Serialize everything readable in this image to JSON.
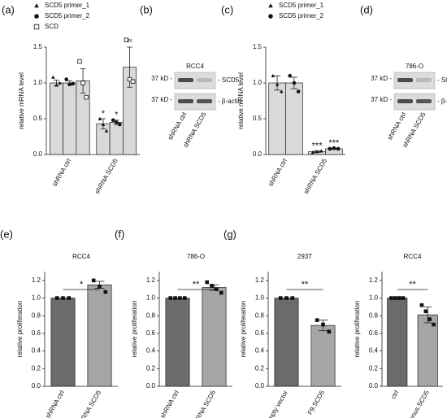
{
  "chart_data": [
    {
      "type": "bar",
      "panel": "(a)",
      "ylabel": "relative mRNA level",
      "categories": [
        "shRNA ctrl",
        "shRNA SCD5"
      ],
      "ylim": [
        0,
        1.5
      ],
      "yticks": [
        {
          "value": 0,
          "label": "0.0"
        },
        {
          "value": 0.5,
          "label": "0.5"
        },
        {
          "value": 1,
          "label": "1.0"
        },
        {
          "value": 1.5,
          "label": "1.5"
        }
      ],
      "series": [
        {
          "name": "SCD5 primer_1",
          "marker": "triangle",
          "color": "#d9d9d9",
          "values": [
            1.0,
            0.43
          ],
          "errors": [
            0.04,
            0.07
          ],
          "points": [
            [
              1.08,
              0.97,
              1.0
            ],
            [
              0.5,
              0.42,
              0.33
            ]
          ]
        },
        {
          "name": "SCD5 primer_2",
          "marker": "circle",
          "color": "#d9d9d9",
          "values": [
            1.0,
            0.45
          ],
          "errors": [
            0.03,
            0.03
          ],
          "points": [
            [
              1.05,
              0.98,
              0.99
            ],
            [
              0.48,
              0.45,
              0.42
            ]
          ]
        },
        {
          "name": "SCD",
          "marker": "square-open",
          "color": "#d9d9d9",
          "values": [
            1.03,
            1.22
          ],
          "errors": [
            0.17,
            0.28
          ],
          "points": [
            [
              1.3,
              1.0,
              0.8
            ],
            [
              1.6,
              1.05,
              1.02
            ]
          ]
        }
      ],
      "annotations": [
        {
          "text": "*",
          "category": 1,
          "series": 0
        },
        {
          "text": "*",
          "category": 1,
          "series": 1
        },
        {
          "text": "ns",
          "category": 1,
          "series": 2
        }
      ]
    },
    {
      "type": "bar",
      "panel": "(c)",
      "ylabel": "relative mRNA level",
      "categories": [
        "shRNA ctrl",
        "shRNA SCD5"
      ],
      "ylim": [
        0,
        1.5
      ],
      "yticks": [
        {
          "value": 0,
          "label": "0.0"
        },
        {
          "value": 0.5,
          "label": "0.5"
        },
        {
          "value": 1,
          "label": "1.0"
        },
        {
          "value": 1.5,
          "label": "1.5"
        }
      ],
      "series": [
        {
          "name": "SCD5 primer_1",
          "marker": "triangle",
          "color": "#d9d9d9",
          "values": [
            1.0,
            0.04
          ],
          "errors": [
            0.1,
            0.01
          ],
          "points": [
            [
              1.1,
              0.98,
              0.88
            ],
            [
              0.03,
              0.04,
              0.05
            ]
          ]
        },
        {
          "name": "SCD5 primer_2",
          "marker": "circle",
          "color": "#d9d9d9",
          "values": [
            1.0,
            0.08
          ],
          "errors": [
            0.08,
            0.01
          ],
          "points": [
            [
              1.1,
              1.0,
              0.88
            ],
            [
              0.08,
              0.09,
              0.08
            ]
          ]
        }
      ],
      "annotations": [
        {
          "text": "***",
          "category": 1,
          "series": 0
        },
        {
          "text": "***",
          "category": 1,
          "series": 1
        }
      ]
    },
    {
      "type": "bar",
      "panel": "(e)",
      "title": "RCC4",
      "ylabel": "relative proliferation",
      "categories": [
        "shRNA ctrl",
        "shRNA SCD5"
      ],
      "values": [
        1.0,
        1.15
      ],
      "errors": [
        0,
        0.04
      ],
      "points": [
        [
          1,
          1,
          1
        ],
        [
          1.2,
          1.13,
          1.07
        ]
      ],
      "colors": [
        "#6b6b6b",
        "#a6a6a6"
      ],
      "significance": "*",
      "ylim": [
        0,
        1.3
      ],
      "yticks": [
        {
          "value": 0,
          "label": "0.0"
        },
        {
          "value": 0.2,
          "label": "0.2"
        },
        {
          "value": 0.4,
          "label": "0.4"
        },
        {
          "value": 0.6,
          "label": "0.6"
        },
        {
          "value": 0.8,
          "label": "0.8"
        },
        {
          "value": 1,
          "label": "1.0"
        },
        {
          "value": 1.2,
          "label": "1.2"
        }
      ]
    },
    {
      "type": "bar",
      "panel": "(f)",
      "title": "786-O",
      "ylabel": "relative proliferation",
      "categories": [
        "shRNA ctrl",
        "shRNA SCD5"
      ],
      "values": [
        1.0,
        1.12
      ],
      "errors": [
        0,
        0.03
      ],
      "points": [
        [
          1,
          1,
          1,
          1
        ],
        [
          1.18,
          1.14,
          1.1,
          1.06
        ]
      ],
      "colors": [
        "#6b6b6b",
        "#a6a6a6"
      ],
      "significance": "**",
      "ylim": [
        0,
        1.3
      ],
      "yticks": [
        {
          "value": 0,
          "label": "0.0"
        },
        {
          "value": 0.2,
          "label": "0.2"
        },
        {
          "value": 0.4,
          "label": "0.4"
        },
        {
          "value": 0.6,
          "label": "0.6"
        },
        {
          "value": 0.8,
          "label": "0.8"
        },
        {
          "value": 1,
          "label": "1.0"
        },
        {
          "value": 1.2,
          "label": "1.2"
        }
      ]
    },
    {
      "type": "bar",
      "panel": "(g)",
      "title": "293T",
      "ylabel": "relative proliferation",
      "categories": [
        "empty vector",
        "F9.SCD5"
      ],
      "values": [
        1.0,
        0.69
      ],
      "errors": [
        0,
        0.06
      ],
      "points": [
        [
          1,
          1,
          1
        ],
        [
          0.75,
          0.7,
          0.62
        ]
      ],
      "colors": [
        "#6b6b6b",
        "#a6a6a6"
      ],
      "significance": "**",
      "ylim": [
        0,
        1.3
      ],
      "yticks": [
        {
          "value": 0,
          "label": "0.0"
        },
        {
          "value": 0.2,
          "label": "0.2"
        },
        {
          "value": 0.4,
          "label": "0.4"
        },
        {
          "value": 0.6,
          "label": "0.6"
        },
        {
          "value": 0.8,
          "label": "0.8"
        },
        {
          "value": 1,
          "label": "1.0"
        },
        {
          "value": 1.2,
          "label": "1.2"
        }
      ]
    },
    {
      "type": "bar",
      "title": "RCC4",
      "ylabel": "relative proliferation",
      "categories": [
        "ctrl",
        "Venus.SCD5"
      ],
      "values": [
        1.0,
        0.81
      ],
      "errors": [
        0,
        0.09
      ],
      "points": [
        [
          1,
          1,
          1,
          1
        ],
        [
          0.92,
          0.85,
          0.76,
          0.7
        ]
      ],
      "colors": [
        "#6b6b6b",
        "#a6a6a6"
      ],
      "significance": "**",
      "ylim": [
        0,
        1.3
      ],
      "yticks": [
        {
          "value": 0,
          "label": "0.0"
        },
        {
          "value": 0.2,
          "label": "0.2"
        },
        {
          "value": 0.4,
          "label": "0.4"
        },
        {
          "value": 0.6,
          "label": "0.6"
        },
        {
          "value": 0.8,
          "label": "0.8"
        },
        {
          "value": 1,
          "label": "1.0"
        },
        {
          "value": 1.2,
          "label": "1.2"
        }
      ]
    }
  ],
  "blots": [
    {
      "panel": "(b)",
      "title": "RCC4",
      "bands": [
        {
          "size": "37 kD -",
          "label": "- SCD5"
        },
        {
          "size": "37 kD -",
          "label": "- β-actin"
        }
      ],
      "lanes": [
        "shRNA ctrl",
        "shRNA SCD5"
      ]
    },
    {
      "panel": "(d)",
      "title": "786-O",
      "bands": [
        {
          "size": "37 kD -",
          "label": "- SCD5"
        },
        {
          "size": "37 kD -",
          "label": "- β-actin"
        }
      ],
      "lanes": [
        "shRNA ctrl",
        "shRNA SCD5"
      ]
    }
  ]
}
